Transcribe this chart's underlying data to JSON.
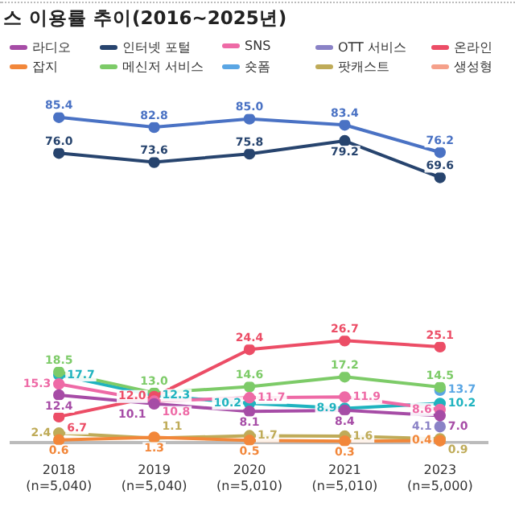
{
  "chart_data": {
    "type": "line",
    "title": "스 이용률 추이(2016~2025년)",
    "categories": [
      "2018\n(n=5,040)",
      "2019\n(n=5,040)",
      "2020\n(n=5,010)",
      "2021\n(n=5,010)",
      "2023\n(n=5,000)"
    ],
    "series": [
      {
        "color": "#4a72c4",
        "values": [
          85.4,
          82.8,
          85.0,
          83.4,
          76.2
        ],
        "value_labels": [
          "85.4",
          "82.8",
          "85.0",
          "83.4",
          "76.2"
        ]
      },
      {
        "name": "라디오",
        "color": "#a64ca6",
        "values": [
          12.4,
          10.1,
          8.1,
          8.4,
          7.0
        ],
        "value_labels": [
          "12.4",
          "10.1",
          "8.1",
          "8.4",
          "7.0"
        ]
      },
      {
        "name": "인터넷 포털",
        "color": "#27446e",
        "values": [
          76.0,
          73.6,
          75.8,
          79.2,
          69.6
        ],
        "value_labels": [
          "76.0",
          "73.6",
          "75.8",
          "79.2",
          "69.6"
        ]
      },
      {
        "name": "SNS",
        "color": "#ee6aa6",
        "values": [
          15.3,
          10.8,
          11.7,
          11.9,
          8.6
        ],
        "value_labels": [
          "15.3",
          "10.8",
          "11.7",
          "11.9",
          "8.6"
        ]
      },
      {
        "name": "OTT 서비스",
        "color": "#8a82c6",
        "values": [
          null,
          null,
          null,
          null,
          4.1
        ],
        "value_labels": [
          null,
          null,
          null,
          null,
          "4.1"
        ]
      },
      {
        "name": "온라인",
        "color": "#ec4d66",
        "values": [
          6.7,
          12.0,
          24.4,
          26.7,
          25.1
        ],
        "value_labels": [
          "6.7",
          "12.0",
          "24.4",
          "26.7",
          "25.1"
        ]
      },
      {
        "name": "잡지",
        "color": "#f2873a",
        "values": [
          0.6,
          1.3,
          0.5,
          0.3,
          0.4
        ],
        "value_labels": [
          "0.6",
          "1.3",
          "0.5",
          "0.3",
          "0.4"
        ]
      },
      {
        "name": "메신저 서비스",
        "color": "#7dcb68",
        "values": [
          18.5,
          13.0,
          14.6,
          17.2,
          14.5
        ],
        "value_labels": [
          "18.5",
          "13.0",
          "14.6",
          "17.2",
          "14.5"
        ]
      },
      {
        "name": "숏폼",
        "color": "#5aa6e4",
        "values": [
          null,
          null,
          null,
          null,
          13.7
        ],
        "value_labels": [
          null,
          null,
          null,
          null,
          "13.7"
        ]
      },
      {
        "name": "팟캐스트",
        "color": "#bfab58",
        "values": [
          2.4,
          1.1,
          1.7,
          1.6,
          0.9
        ],
        "value_labels": [
          "2.4",
          "1.1",
          "1.7",
          "1.6",
          "0.9"
        ]
      },
      {
        "name": "생성형",
        "color": "#f5a08a",
        "values": [
          null,
          null,
          null,
          null,
          null
        ]
      },
      {
        "color": "#1fb3bf",
        "values": [
          17.7,
          12.3,
          10.2,
          8.9,
          10.2
        ],
        "value_labels": [
          "17.7",
          "12.3",
          "10.2",
          "8.9",
          "10.2"
        ]
      }
    ],
    "tick_labels": "x",
    "legend": "top",
    "marker": "circle",
    "line_style": "solid",
    "grid": false
  }
}
